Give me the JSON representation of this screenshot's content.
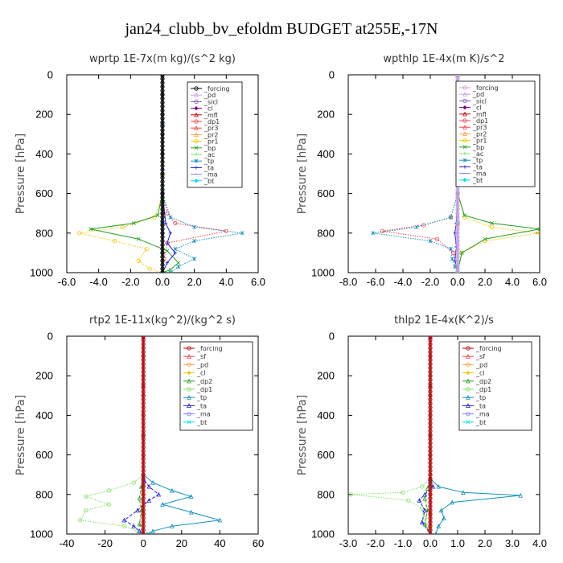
{
  "figure_title": "jan24_clubb_bv_efoldm  BUDGET at255E,-17N",
  "chart_data": [
    {
      "type": "line",
      "title": "wprtp  1E-7x(m kg)/(s^2 kg)",
      "ylabel": "Pressure [hPa]",
      "xlim": [
        -6,
        6
      ],
      "ylim": [
        0,
        1000
      ],
      "x_ticks": [
        "-6.0",
        "-4.0",
        "-2.0",
        "0.0",
        "2.0",
        "4.0",
        "6.0"
      ],
      "y_ticks": [
        "0",
        "200",
        "400",
        "600",
        "800",
        "1000"
      ],
      "legend_position": "top-right",
      "series": [
        {
          "name": "_forcing",
          "color": "#000000",
          "x": [
            0,
            0,
            0,
            0,
            0,
            0,
            0,
            0,
            0,
            0,
            0
          ],
          "y": [
            0,
            100,
            200,
            300,
            400,
            500,
            600,
            700,
            800,
            900,
            1000
          ]
        },
        {
          "name": "_pd",
          "color": "#c8a0e0",
          "x": [
            0,
            0,
            0,
            0,
            0
          ],
          "y": [
            0,
            250,
            500,
            750,
            1000
          ]
        },
        {
          "name": "_sicl",
          "color": "#8060c0",
          "x": [
            0,
            0,
            0,
            0,
            0
          ],
          "y": [
            0,
            250,
            500,
            750,
            1000
          ]
        },
        {
          "name": "_cl",
          "color": "#800080",
          "x": [
            0,
            0,
            0,
            0,
            0
          ],
          "y": [
            0,
            250,
            500,
            750,
            1000
          ]
        },
        {
          "name": "_mfl",
          "color": "#c00000",
          "x": [
            0,
            0,
            0,
            0,
            0
          ],
          "y": [
            0,
            250,
            500,
            750,
            1000
          ]
        },
        {
          "name": "_dp1",
          "color": "#ff4040",
          "x": [
            0,
            0,
            0.3,
            0.8,
            4.0,
            0.3,
            0.1,
            0
          ],
          "y": [
            0,
            600,
            700,
            750,
            790,
            850,
            930,
            1000
          ]
        },
        {
          "name": "_pr3",
          "color": "#ff4040",
          "x": [
            0,
            0,
            0,
            0,
            0
          ],
          "y": [
            0,
            250,
            500,
            750,
            1000
          ]
        },
        {
          "name": "_pr2",
          "color": "#ffa040",
          "x": [
            0,
            0,
            0,
            0,
            0
          ],
          "y": [
            0,
            250,
            500,
            750,
            1000
          ]
        },
        {
          "name": "_pr1",
          "color": "#f0c800",
          "x": [
            0,
            0,
            -0.5,
            -2.5,
            -5.2,
            -3.0,
            -1.0,
            -1.5,
            -0.8,
            0
          ],
          "y": [
            0,
            600,
            720,
            770,
            800,
            840,
            880,
            940,
            980,
            1000
          ]
        },
        {
          "name": "_bp",
          "color": "#20a020",
          "x": [
            0,
            0,
            -0.3,
            -1.8,
            -4.5,
            -1.5,
            0.3,
            1.0,
            0.5,
            0
          ],
          "y": [
            0,
            600,
            710,
            750,
            780,
            830,
            890,
            950,
            985,
            1000
          ]
        },
        {
          "name": "_ac",
          "color": "#80e060",
          "x": [
            0,
            0,
            0,
            0,
            0
          ],
          "y": [
            0,
            250,
            500,
            750,
            1000
          ]
        },
        {
          "name": "_tp",
          "color": "#1090c0",
          "x": [
            0,
            0,
            0.5,
            2.0,
            5.0,
            2.0,
            0.8,
            2.0,
            1.0,
            0.5
          ],
          "y": [
            0,
            600,
            720,
            770,
            800,
            840,
            880,
            930,
            970,
            1000
          ]
        },
        {
          "name": "_ta",
          "color": "#2020e0",
          "x": [
            0,
            0,
            0.2,
            0.5,
            0.3,
            0.8,
            0.3,
            0
          ],
          "y": [
            0,
            600,
            750,
            800,
            850,
            900,
            950,
            1000
          ]
        },
        {
          "name": "_ma",
          "color": "#8080ff",
          "x": [
            0,
            0,
            0,
            0,
            0
          ],
          "y": [
            0,
            250,
            500,
            750,
            1000
          ]
        },
        {
          "name": "_bt",
          "color": "#00e0f0",
          "x": [
            0,
            0,
            0,
            0,
            0
          ],
          "y": [
            0,
            250,
            500,
            750,
            1000
          ]
        }
      ]
    },
    {
      "type": "line",
      "title": "wpthlp  1E-4x(m K)/s^2",
      "ylabel": "Pressure [hPa]",
      "xlim": [
        -8,
        6
      ],
      "ylim": [
        0,
        1000
      ],
      "x_ticks": [
        "-8.0",
        "-6.0",
        "-4.0",
        "-2.0",
        "0.0",
        "2.0",
        "4.0",
        "6.0"
      ],
      "y_ticks": [
        "0",
        "200",
        "400",
        "600",
        "800",
        "1000"
      ],
      "legend_position": "top-right",
      "series": [
        {
          "name": "_forcing",
          "color": "#c8a0e0",
          "x": [
            0,
            0,
            0,
            0,
            0
          ],
          "y": [
            0,
            250,
            500,
            750,
            1000
          ]
        },
        {
          "name": "_pd",
          "color": "#c8a0e0",
          "x": [
            0,
            0,
            0,
            0,
            0
          ],
          "y": [
            0,
            250,
            500,
            750,
            1000
          ]
        },
        {
          "name": "_sicl",
          "color": "#8060c0",
          "x": [
            0,
            0,
            0,
            0,
            0
          ],
          "y": [
            0,
            250,
            500,
            750,
            1000
          ]
        },
        {
          "name": "_cl",
          "color": "#800080",
          "x": [
            0,
            0,
            0,
            0,
            0
          ],
          "y": [
            0,
            250,
            500,
            750,
            1000
          ]
        },
        {
          "name": "_mfl",
          "color": "#c00000",
          "x": [
            0,
            0,
            0,
            0,
            0
          ],
          "y": [
            0,
            250,
            500,
            750,
            1000
          ]
        },
        {
          "name": "_dp1",
          "color": "#ff4040",
          "x": [
            0,
            0,
            -0.5,
            -2.5,
            -5.5,
            -1.5,
            -0.3,
            0
          ],
          "y": [
            0,
            600,
            720,
            760,
            790,
            830,
            900,
            1000
          ]
        },
        {
          "name": "_pr3",
          "color": "#ff4040",
          "x": [
            0,
            0,
            0,
            0,
            0
          ],
          "y": [
            0,
            250,
            500,
            750,
            1000
          ]
        },
        {
          "name": "_pr2",
          "color": "#ffa040",
          "x": [
            0,
            0,
            0,
            0,
            0
          ],
          "y": [
            0,
            250,
            500,
            750,
            1000
          ]
        },
        {
          "name": "_pr1",
          "color": "#f0c800",
          "x": [
            0,
            0,
            0.5,
            2.5,
            6.0,
            2.0,
            0.3,
            0
          ],
          "y": [
            0,
            600,
            720,
            770,
            800,
            840,
            900,
            1000
          ]
        },
        {
          "name": "_bp",
          "color": "#20a020",
          "x": [
            0,
            0,
            0.5,
            2.5,
            6.0,
            2.0,
            0.3,
            0
          ],
          "y": [
            0,
            600,
            710,
            750,
            780,
            830,
            900,
            1000
          ]
        },
        {
          "name": "_ac",
          "color": "#80e060",
          "x": [
            0,
            0,
            0,
            0,
            0
          ],
          "y": [
            0,
            250,
            500,
            750,
            1000
          ]
        },
        {
          "name": "_tp",
          "color": "#1090c0",
          "x": [
            0,
            0,
            -0.5,
            -3.0,
            -6.2,
            -2.0,
            -0.5,
            -0.4,
            -0.2,
            0
          ],
          "y": [
            0,
            600,
            720,
            770,
            800,
            840,
            880,
            930,
            970,
            1000
          ]
        },
        {
          "name": "_ta",
          "color": "#2020e0",
          "x": [
            0,
            0,
            -0.1,
            -0.2,
            -0.1,
            -0.2,
            0
          ],
          "y": [
            0,
            600,
            750,
            800,
            870,
            940,
            1000
          ]
        },
        {
          "name": "_ma",
          "color": "#8080ff",
          "x": [
            0,
            0,
            0,
            0,
            0
          ],
          "y": [
            0,
            250,
            500,
            750,
            1000
          ]
        },
        {
          "name": "_bt",
          "color": "#00e0f0",
          "x": [
            0,
            0,
            0,
            0,
            0
          ],
          "y": [
            0,
            250,
            500,
            750,
            1000
          ]
        }
      ]
    },
    {
      "type": "line",
      "title": "rtp2  1E-11x(kg^2)/(kg^2 s)",
      "ylabel": "Pressure [hPa]",
      "xlim": [
        -40,
        60
      ],
      "ylim": [
        0,
        1000
      ],
      "x_ticks": [
        "-40",
        "-20",
        "0",
        "20",
        "40",
        "60"
      ],
      "y_ticks": [
        "0",
        "200",
        "400",
        "600",
        "800",
        "1000"
      ],
      "legend_position": "top-right",
      "series": [
        {
          "name": "_forcing",
          "color": "#c00000",
          "x": [
            0,
            0,
            0,
            0,
            0,
            0,
            0,
            0,
            0,
            0,
            0
          ],
          "y": [
            0,
            100,
            200,
            300,
            400,
            500,
            600,
            700,
            800,
            900,
            1000
          ]
        },
        {
          "name": "_sf",
          "color": "#ff4040",
          "x": [
            0,
            0,
            0,
            0,
            0
          ],
          "y": [
            0,
            250,
            500,
            750,
            1000
          ]
        },
        {
          "name": "_pd",
          "color": "#ffa040",
          "x": [
            0,
            0,
            0,
            0,
            0
          ],
          "y": [
            0,
            250,
            500,
            750,
            1000
          ]
        },
        {
          "name": "_cl",
          "color": "#f0c800",
          "x": [
            0,
            0,
            0,
            0,
            0
          ],
          "y": [
            0,
            250,
            500,
            750,
            1000
          ]
        },
        {
          "name": "_dp2",
          "color": "#20a020",
          "x": [
            0,
            0,
            -1,
            -2,
            -1,
            -2,
            0
          ],
          "y": [
            0,
            700,
            760,
            820,
            880,
            950,
            1000
          ]
        },
        {
          "name": "_dp1",
          "color": "#80e060",
          "x": [
            0,
            0,
            -5,
            -18,
            -30,
            -18,
            -30,
            -33,
            -10,
            -3,
            0
          ],
          "y": [
            0,
            700,
            740,
            780,
            810,
            850,
            880,
            930,
            960,
            985,
            1000
          ]
        },
        {
          "name": "_tp",
          "color": "#1090c0",
          "x": [
            0,
            0,
            5,
            15,
            25,
            10,
            25,
            40,
            15,
            5,
            2
          ],
          "y": [
            0,
            700,
            740,
            780,
            810,
            850,
            890,
            930,
            960,
            985,
            1000
          ]
        },
        {
          "name": "_ta",
          "color": "#2020e0",
          "x": [
            0,
            0,
            3,
            8,
            3,
            -3,
            -10,
            -5,
            -2,
            0
          ],
          "y": [
            0,
            720,
            760,
            800,
            830,
            880,
            930,
            960,
            985,
            1000
          ]
        },
        {
          "name": "_ma",
          "color": "#8080ff",
          "x": [
            0,
            0,
            0,
            0,
            0
          ],
          "y": [
            0,
            250,
            500,
            750,
            1000
          ]
        },
        {
          "name": "_bt",
          "color": "#00e0f0",
          "x": [
            0,
            0,
            0,
            0,
            0
          ],
          "y": [
            0,
            250,
            500,
            750,
            1000
          ]
        }
      ]
    },
    {
      "type": "line",
      "title": "thlp2  1E-4x(K^2)/s",
      "ylabel": "Pressure [hPa]",
      "xlim": [
        -3,
        4
      ],
      "ylim": [
        0,
        1000
      ],
      "x_ticks": [
        "-3.0",
        "-2.0",
        "-1.0",
        "0.0",
        "1.0",
        "2.0",
        "3.0",
        "4.0"
      ],
      "y_ticks": [
        "0",
        "200",
        "400",
        "600",
        "800",
        "1000"
      ],
      "legend_position": "top-right",
      "series": [
        {
          "name": "_forcing",
          "color": "#c00000",
          "x": [
            0,
            0,
            0,
            0,
            0,
            0,
            0,
            0,
            0,
            0,
            0
          ],
          "y": [
            0,
            100,
            200,
            300,
            400,
            500,
            600,
            700,
            800,
            900,
            1000
          ]
        },
        {
          "name": "_sf",
          "color": "#ff4040",
          "x": [
            0,
            0,
            0,
            0,
            0
          ],
          "y": [
            0,
            250,
            500,
            750,
            1000
          ]
        },
        {
          "name": "_pd",
          "color": "#ffa040",
          "x": [
            0,
            0,
            0,
            0,
            0
          ],
          "y": [
            0,
            250,
            500,
            750,
            1000
          ]
        },
        {
          "name": "_cl",
          "color": "#f0c800",
          "x": [
            0,
            0,
            0,
            0,
            0
          ],
          "y": [
            0,
            250,
            500,
            750,
            1000
          ]
        },
        {
          "name": "_dp2",
          "color": "#20a020",
          "x": [
            0,
            0,
            -0.1,
            -0.2,
            -0.1,
            -0.2,
            0
          ],
          "y": [
            0,
            720,
            770,
            820,
            880,
            950,
            1000
          ]
        },
        {
          "name": "_dp1",
          "color": "#80e060",
          "x": [
            0,
            0,
            -0.3,
            -1.0,
            -2.9,
            -0.8,
            -0.3,
            -0.2,
            -0.1,
            0
          ],
          "y": [
            0,
            720,
            760,
            790,
            800,
            830,
            870,
            920,
            960,
            1000
          ]
        },
        {
          "name": "_tp",
          "color": "#1090c0",
          "x": [
            0,
            0,
            0.3,
            1.2,
            3.3,
            0.8,
            0.4,
            0.5,
            0.3,
            0.2
          ],
          "y": [
            0,
            720,
            760,
            790,
            805,
            840,
            880,
            920,
            960,
            1000
          ]
        },
        {
          "name": "_ta",
          "color": "#2020e0",
          "x": [
            0,
            0,
            0.1,
            -0.2,
            -0.4,
            -0.2,
            -0.3,
            0
          ],
          "y": [
            0,
            720,
            760,
            800,
            830,
            880,
            940,
            1000
          ]
        },
        {
          "name": "_ma",
          "color": "#8080ff",
          "x": [
            0,
            0,
            0,
            0,
            0
          ],
          "y": [
            0,
            250,
            500,
            750,
            1000
          ]
        },
        {
          "name": "_bt",
          "color": "#00e0f0",
          "x": [
            0,
            0,
            0,
            0,
            0
          ],
          "y": [
            0,
            250,
            500,
            750,
            1000
          ]
        }
      ]
    }
  ]
}
